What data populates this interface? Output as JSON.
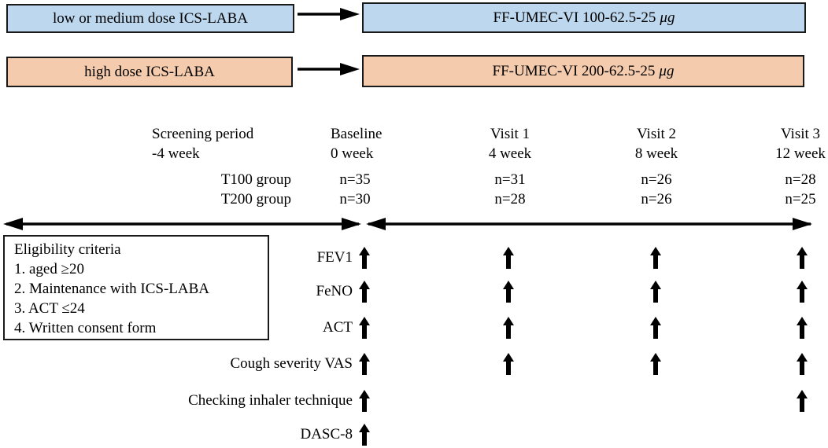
{
  "treatment_flow": {
    "rows": [
      {
        "source": "low or medium dose ICS-LABA",
        "target": "FF-UMEC-VI 100-62.5-25",
        "target_unit": "μg",
        "fill_color": "#bdd7ee"
      },
      {
        "source": "high dose ICS-LABA",
        "target": "FF-UMEC-VI 200-62.5-25",
        "target_unit": "μg",
        "fill_color": "#f5cbad"
      }
    ]
  },
  "timeline": {
    "columns": [
      {
        "title": "Screening period",
        "subtitle": "-4 week"
      },
      {
        "title": "Baseline",
        "subtitle": "0 week"
      },
      {
        "title": "Visit 1",
        "subtitle": "4 week"
      },
      {
        "title": "Visit 2",
        "subtitle": "8 week"
      },
      {
        "title": "Visit 3",
        "subtitle": "12 week"
      }
    ]
  },
  "groups": [
    {
      "label": "T100 group",
      "counts": [
        "n=35",
        "n=31",
        "n=26",
        "n=28"
      ]
    },
    {
      "label": "T200 group",
      "counts": [
        "n=30",
        "n=28",
        "n=26",
        "n=25"
      ]
    }
  ],
  "eligibility": {
    "title": "Eligibility criteria",
    "items": [
      "1. aged ≥20",
      "2. Maintenance with ICS-LABA",
      "3. ACT ≤24",
      "4. Written consent form"
    ]
  },
  "assessments": {
    "rows": [
      {
        "label": "FEV1",
        "visits": [
          true,
          true,
          true,
          true
        ]
      },
      {
        "label": "FeNO",
        "visits": [
          true,
          true,
          true,
          true
        ]
      },
      {
        "label": "ACT",
        "visits": [
          true,
          true,
          true,
          true
        ]
      },
      {
        "label": "Cough severity VAS",
        "visits": [
          true,
          true,
          true,
          true
        ]
      },
      {
        "label": "Checking inhaler technique",
        "visits": [
          true,
          false,
          false,
          true
        ]
      },
      {
        "label": "DASC-8",
        "visits": [
          true,
          false,
          false,
          false
        ]
      }
    ]
  },
  "colors": {
    "blue_fill": "#bdd7ee",
    "orange_fill": "#f5cbad",
    "line": "#000000"
  }
}
